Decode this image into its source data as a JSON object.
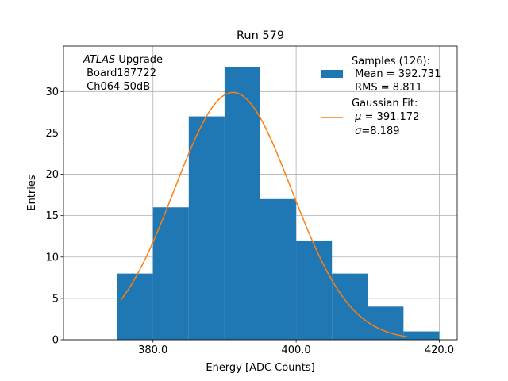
{
  "chart_data": {
    "type": "bar",
    "title": "Run 579",
    "xlabel": "Energy [ADC Counts]",
    "ylabel": "Entries",
    "xlim": [
      367.5,
      422.5
    ],
    "ylim": [
      0,
      35.5
    ],
    "x_ticks": [
      380.0,
      400.0,
      420.0
    ],
    "x_tick_labels": [
      "380.0",
      "400.0",
      "420.0"
    ],
    "y_ticks": [
      0,
      5,
      10,
      15,
      20,
      25,
      30
    ],
    "y_tick_labels": [
      "0",
      "5",
      "10",
      "15",
      "20",
      "25",
      "30"
    ],
    "grid": true,
    "bins": [
      {
        "x0": 375,
        "x1": 380,
        "count": 8
      },
      {
        "x0": 380,
        "x1": 385,
        "count": 16
      },
      {
        "x0": 385,
        "x1": 390,
        "count": 27
      },
      {
        "x0": 390,
        "x1": 395,
        "count": 33
      },
      {
        "x0": 395,
        "x1": 400,
        "count": 17
      },
      {
        "x0": 400,
        "x1": 405,
        "count": 12
      },
      {
        "x0": 405,
        "x1": 410,
        "count": 8
      },
      {
        "x0": 410,
        "x1": 415,
        "count": 4
      },
      {
        "x0": 415,
        "x1": 420,
        "count": 1
      }
    ],
    "fit": {
      "mu": 391.172,
      "sigma": 8.189,
      "amplitude": 29.9,
      "x_range": [
        375.5,
        415.5
      ]
    },
    "colors": {
      "histogram": "#1f77b4",
      "fit": "#ff7f0e",
      "grid": "#b0b0b0"
    },
    "annotation": {
      "italic": "ATLAS",
      "rest": " Upgrade",
      "line2": " Board187722",
      "line3": " Ch064 50dB"
    },
    "legend": {
      "placement": "top-right",
      "samples": {
        "line1": "Samples (126):",
        "line2": " Mean = 392.731",
        "line3": " RMS = 8.811"
      },
      "fit": {
        "line1": "Gaussian Fit:",
        "mu_symbol": "μ",
        "mu_text": " = 391.172",
        "sigma_symbol": "σ",
        "sigma_text": "=8.189"
      }
    }
  }
}
